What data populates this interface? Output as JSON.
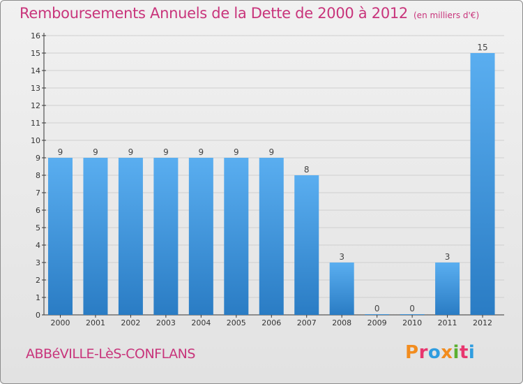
{
  "header": {
    "title": "Remboursements Annuels de la Dette de 2000 à 2012",
    "unit": "(en milliers d'€)"
  },
  "footer": {
    "commune": "ABBéVILLE-LèS-CONFLANS",
    "logo": "Proxiti",
    "logo_colors": [
      "#f28c1e",
      "#e8366f",
      "#2f9de0",
      "#f28c1e",
      "#5ab031",
      "#e8366f",
      "#2f9de0"
    ]
  },
  "colors": {
    "title": "#c8347b",
    "bar_light": "#5aaef0",
    "bar_dark": "#2a7cc4",
    "grid": "#cfcfcf"
  },
  "chart_data": {
    "type": "bar",
    "title": "Remboursements Annuels de la Dette de 2000 à 2012",
    "xlabel": "",
    "ylabel": "",
    "categories": [
      "2000",
      "2001",
      "2002",
      "2003",
      "2004",
      "2005",
      "2006",
      "2007",
      "2008",
      "2009",
      "2010",
      "2011",
      "2012"
    ],
    "values": [
      9,
      9,
      9,
      9,
      9,
      9,
      9,
      8,
      3,
      0,
      0,
      3,
      15
    ],
    "value_labels": [
      "9",
      "9",
      "9",
      "9",
      "9",
      "9",
      "9",
      "8",
      "3",
      "0",
      "0",
      "3",
      "15"
    ],
    "ylim": [
      0,
      16
    ],
    "yticks": [
      0,
      1,
      2,
      3,
      4,
      5,
      6,
      7,
      8,
      9,
      10,
      11,
      12,
      13,
      14,
      15,
      16
    ],
    "grid": true
  }
}
